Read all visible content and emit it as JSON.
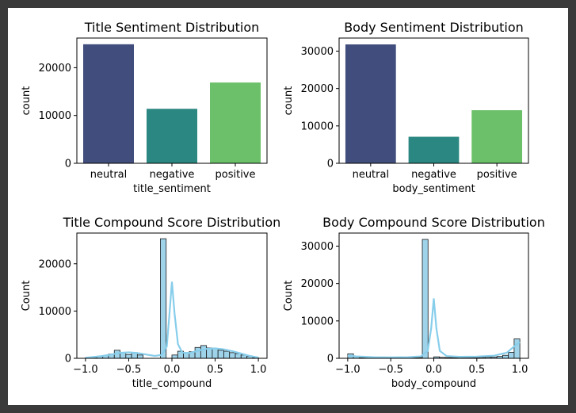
{
  "chart_data": [
    {
      "type": "bar",
      "title": "Title Sentiment Distribution",
      "xlabel": "title_sentiment",
      "ylabel": "count",
      "categories": [
        "neutral",
        "negative",
        "positive"
      ],
      "values": [
        24900,
        11400,
        16900
      ],
      "colors": [
        "#414e7d",
        "#2a8781",
        "#6cc06a"
      ],
      "ylim": [
        0,
        26200
      ],
      "yticks": [
        0,
        10000,
        20000
      ],
      "ytick_labels": [
        "0",
        "10000",
        "20000"
      ]
    },
    {
      "type": "bar",
      "title": "Body Sentiment Distribution",
      "xlabel": "body_sentiment",
      "ylabel": "count",
      "categories": [
        "neutral",
        "negative",
        "positive"
      ],
      "values": [
        31800,
        7100,
        14200
      ],
      "colors": [
        "#414e7d",
        "#2a8781",
        "#6cc06a"
      ],
      "ylim": [
        0,
        33500
      ],
      "yticks": [
        0,
        10000,
        20000,
        30000
      ],
      "ytick_labels": [
        "0",
        "10000",
        "20000",
        "30000"
      ]
    },
    {
      "type": "histogram",
      "title": "Title Compound Score Distribution",
      "xlabel": "title_compound",
      "ylabel": "Count",
      "bin_range": [
        -1,
        1
      ],
      "bins": 30,
      "counts": [
        100,
        200,
        400,
        600,
        900,
        1700,
        1200,
        800,
        1200,
        700,
        0,
        0,
        0,
        25300,
        0,
        700,
        1500,
        1200,
        1400,
        2300,
        2700,
        2200,
        2000,
        1700,
        1500,
        1200,
        1000,
        700,
        400,
        150
      ],
      "kde": [
        [
          -1.0,
          100
        ],
        [
          -0.9,
          300
        ],
        [
          -0.8,
          500
        ],
        [
          -0.7,
          800
        ],
        [
          -0.6,
          1150
        ],
        [
          -0.5,
          1250
        ],
        [
          -0.4,
          1100
        ],
        [
          -0.3,
          800
        ],
        [
          -0.2,
          500
        ],
        [
          -0.12,
          700
        ],
        [
          -0.06,
          2500
        ],
        [
          -0.03,
          9000
        ],
        [
          0.0,
          16200
        ],
        [
          0.03,
          9500
        ],
        [
          0.07,
          3000
        ],
        [
          0.12,
          1200
        ],
        [
          0.2,
          1100
        ],
        [
          0.3,
          1600
        ],
        [
          0.4,
          2000
        ],
        [
          0.5,
          2100
        ],
        [
          0.6,
          1900
        ],
        [
          0.7,
          1500
        ],
        [
          0.8,
          1000
        ],
        [
          0.9,
          500
        ],
        [
          1.0,
          150
        ]
      ],
      "bar_color": "#9fd3ea",
      "kde_color": "#87ceeb",
      "xlim": [
        -1.1,
        1.1
      ],
      "ylim": [
        0,
        26500
      ],
      "xticks": [
        -1.0,
        -0.5,
        0.0,
        0.5,
        1.0
      ],
      "xtick_labels": [
        "−1.0",
        "−0.5",
        "0.0",
        "0.5",
        "1.0"
      ],
      "yticks": [
        0,
        10000,
        20000
      ],
      "ytick_labels": [
        "0",
        "10000",
        "20000"
      ]
    },
    {
      "type": "histogram",
      "title": "Body Compound Score Distribution",
      "xlabel": "body_compound",
      "ylabel": "Count",
      "bin_range": [
        -1,
        1
      ],
      "bins": 30,
      "counts": [
        1200,
        400,
        150,
        100,
        100,
        100,
        100,
        100,
        100,
        100,
        150,
        150,
        200,
        31800,
        0,
        400,
        250,
        200,
        200,
        200,
        200,
        200,
        200,
        250,
        300,
        350,
        500,
        800,
        1600,
        5200
      ],
      "kde": [
        [
          -1.0,
          700
        ],
        [
          -0.9,
          500
        ],
        [
          -0.7,
          300
        ],
        [
          -0.5,
          250
        ],
        [
          -0.3,
          300
        ],
        [
          -0.15,
          500
        ],
        [
          -0.07,
          2000
        ],
        [
          -0.03,
          8000
        ],
        [
          0.0,
          16000
        ],
        [
          0.03,
          8000
        ],
        [
          0.07,
          2000
        ],
        [
          0.15,
          600
        ],
        [
          0.3,
          400
        ],
        [
          0.5,
          450
        ],
        [
          0.7,
          700
        ],
        [
          0.85,
          1500
        ],
        [
          0.95,
          3500
        ],
        [
          1.0,
          4300
        ]
      ],
      "bar_color": "#9fd3ea",
      "kde_color": "#87ceeb",
      "xlim": [
        -1.1,
        1.1
      ],
      "ylim": [
        0,
        33500
      ],
      "xticks": [
        -1.0,
        -0.5,
        0.0,
        0.5,
        1.0
      ],
      "xtick_labels": [
        "−1.0",
        "−0.5",
        "0.0",
        "0.5",
        "1.0"
      ],
      "yticks": [
        0,
        10000,
        20000,
        30000
      ],
      "ytick_labels": [
        "0",
        "10000",
        "20000",
        "30000"
      ]
    }
  ]
}
